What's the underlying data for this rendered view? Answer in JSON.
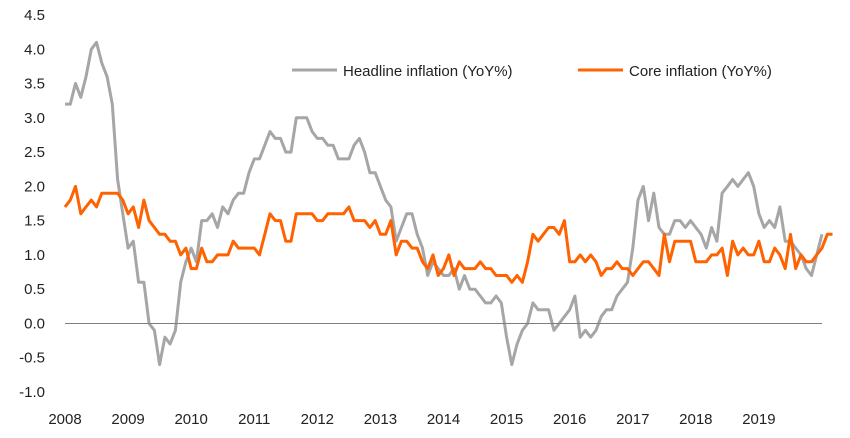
{
  "chart_data": {
    "type": "line",
    "title": "",
    "xlabel": "",
    "ylabel": "",
    "ylim": [
      -1.0,
      4.5
    ],
    "xlim": [
      2008,
      2020
    ],
    "yticks": [
      "4.5",
      "4.0",
      "3.5",
      "3.0",
      "2.5",
      "2.0",
      "1.5",
      "1.0",
      "0.5",
      "0.0",
      "-0.5",
      "-1.0"
    ],
    "xticks": [
      "2008",
      "2009",
      "2010",
      "2011",
      "2012",
      "2013",
      "2014",
      "2015",
      "2016",
      "2017",
      "2018",
      "2019"
    ],
    "grid": false,
    "legend_position": "top-right",
    "series": [
      {
        "name": "Headline inflation (YoY%)",
        "color": "#a6a6a6",
        "x_start": 2008.0,
        "x_step_months": 1,
        "values": [
          3.2,
          3.2,
          3.5,
          3.3,
          3.6,
          4.0,
          4.1,
          3.8,
          3.6,
          3.2,
          2.1,
          1.6,
          1.1,
          1.2,
          0.6,
          0.6,
          0.0,
          -0.1,
          -0.6,
          -0.2,
          -0.3,
          -0.1,
          0.6,
          0.9,
          1.1,
          0.9,
          1.5,
          1.5,
          1.6,
          1.4,
          1.7,
          1.6,
          1.8,
          1.9,
          1.9,
          2.2,
          2.4,
          2.4,
          2.6,
          2.8,
          2.7,
          2.7,
          2.5,
          2.5,
          3.0,
          3.0,
          3.0,
          2.8,
          2.7,
          2.7,
          2.6,
          2.6,
          2.4,
          2.4,
          2.4,
          2.6,
          2.7,
          2.5,
          2.2,
          2.2,
          2.0,
          1.8,
          1.7,
          1.2,
          1.4,
          1.6,
          1.6,
          1.3,
          1.1,
          0.7,
          0.9,
          0.8,
          0.7,
          0.7,
          0.8,
          0.5,
          0.7,
          0.5,
          0.5,
          0.4,
          0.3,
          0.3,
          0.4,
          0.3,
          -0.2,
          -0.6,
          -0.3,
          -0.1,
          0.0,
          0.3,
          0.2,
          0.2,
          0.2,
          -0.1,
          0.0,
          0.1,
          0.2,
          0.4,
          -0.2,
          -0.1,
          -0.2,
          -0.1,
          0.1,
          0.2,
          0.2,
          0.4,
          0.5,
          0.6,
          1.1,
          1.8,
          2.0,
          1.5,
          1.9,
          1.4,
          1.3,
          1.3,
          1.5,
          1.5,
          1.4,
          1.5,
          1.4,
          1.3,
          1.1,
          1.4,
          1.2,
          1.9,
          2.0,
          2.1,
          2.0,
          2.1,
          2.2,
          2.0,
          1.6,
          1.4,
          1.5,
          1.4,
          1.7,
          1.2,
          1.2,
          1.1,
          1.0,
          0.8,
          0.7,
          1.0,
          1.3
        ]
      },
      {
        "name": "Core inflation (YoY%)",
        "color": "#ff6200",
        "x_start": 2008.0,
        "x_step_months": 1,
        "values": [
          1.7,
          1.8,
          2.0,
          1.6,
          1.7,
          1.8,
          1.7,
          1.9,
          1.9,
          1.9,
          1.9,
          1.8,
          1.6,
          1.7,
          1.4,
          1.8,
          1.5,
          1.4,
          1.3,
          1.3,
          1.2,
          1.2,
          1.0,
          1.1,
          0.8,
          0.8,
          1.1,
          0.9,
          0.9,
          1.0,
          1.0,
          1.0,
          1.2,
          1.1,
          1.1,
          1.1,
          1.1,
          1.0,
          1.3,
          1.6,
          1.5,
          1.5,
          1.2,
          1.2,
          1.6,
          1.6,
          1.6,
          1.6,
          1.5,
          1.5,
          1.6,
          1.6,
          1.6,
          1.6,
          1.7,
          1.5,
          1.5,
          1.5,
          1.4,
          1.5,
          1.3,
          1.3,
          1.5,
          1.0,
          1.2,
          1.2,
          1.1,
          1.1,
          0.9,
          0.8,
          1.0,
          0.7,
          0.8,
          1.0,
          0.7,
          0.9,
          0.8,
          0.8,
          0.8,
          0.9,
          0.8,
          0.8,
          0.7,
          0.7,
          0.7,
          0.6,
          0.7,
          0.6,
          0.9,
          1.3,
          1.2,
          1.3,
          1.4,
          1.4,
          1.3,
          1.5,
          0.9,
          0.9,
          1.0,
          0.9,
          1.0,
          0.9,
          0.7,
          0.8,
          0.8,
          0.9,
          0.8,
          0.8,
          0.7,
          0.8,
          0.9,
          0.9,
          0.8,
          0.7,
          1.3,
          0.9,
          1.2,
          1.2,
          1.2,
          1.2,
          0.9,
          0.9,
          0.9,
          1.0,
          1.0,
          1.1,
          0.7,
          1.2,
          1.0,
          1.1,
          1.0,
          1.0,
          1.2,
          0.9,
          0.9,
          1.1,
          1.0,
          0.8,
          1.3,
          0.8,
          1.0,
          0.9,
          0.9,
          1.0,
          1.1,
          1.3,
          1.3
        ]
      }
    ]
  }
}
